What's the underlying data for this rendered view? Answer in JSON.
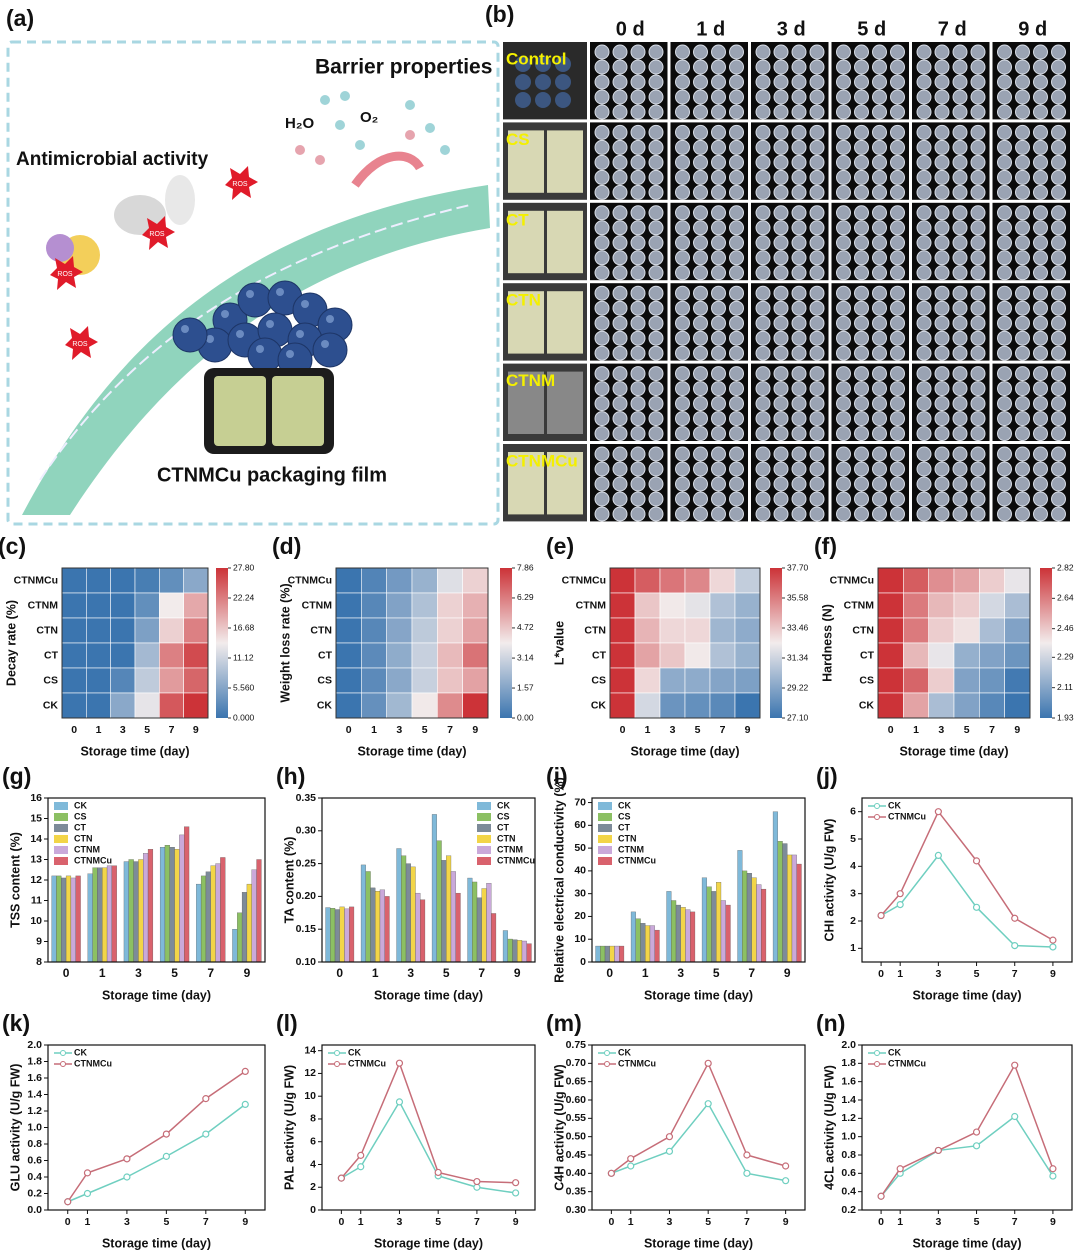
{
  "panel_a": {
    "label": "(a)",
    "title": "Barrier properties",
    "h2o": "H₂O",
    "o2": "O₂",
    "antimicrobial": "Antimicrobial activity",
    "ros": "ROS",
    "film": "CTNMCu packaging film"
  },
  "panel_b": {
    "label": "(b)",
    "days": [
      "0 d",
      "1 d",
      "3 d",
      "5 d",
      "7 d",
      "9 d"
    ],
    "rows": [
      "Control",
      "CS",
      "CT",
      "CTN",
      "CTNM",
      "CTNMCu"
    ]
  },
  "chart_data": [
    {
      "type": "heatmap",
      "panel": "(c)",
      "xlabel": "Storage time (day)",
      "ylabel": "Decay rate (%)",
      "x": [
        "0",
        "1",
        "3",
        "5",
        "7",
        "9"
      ],
      "y": [
        "CTNMCu",
        "CTNM",
        "CTN",
        "CT",
        "CS",
        "CK"
      ],
      "values": [
        [
          0,
          0,
          0,
          1,
          3,
          6
        ],
        [
          0,
          0,
          0,
          3,
          14,
          19
        ],
        [
          0,
          0,
          0,
          5,
          16,
          22
        ],
        [
          0,
          0,
          0,
          8,
          22,
          26
        ],
        [
          0,
          0,
          2,
          10,
          20,
          24
        ],
        [
          0,
          0,
          6,
          13,
          25,
          27.8
        ]
      ],
      "zlim": [
        0,
        27.8
      ],
      "colorbar_ticks": [
        {
          "value": 0,
          "label": "0.000"
        },
        {
          "value": 5.56,
          "label": "5.560"
        },
        11.12,
        16.68,
        22.24,
        {
          "value": 27.8,
          "label": "27.80"
        }
      ]
    },
    {
      "type": "heatmap",
      "panel": "(d)",
      "xlabel": "Storage time (day)",
      "ylabel": "Weight loss rate (%)",
      "x": [
        "0",
        "1",
        "3",
        "5",
        "7",
        "9"
      ],
      "y": [
        "CTNMCu",
        "CTNM",
        "CTN",
        "CT",
        "CS",
        "CK"
      ],
      "values": [
        [
          0,
          0.5,
          1.2,
          2,
          3.5,
          4.5
        ],
        [
          0,
          0.6,
          1.5,
          2.5,
          4.5,
          5.2
        ],
        [
          0,
          0.6,
          1.6,
          2.8,
          4.5,
          5.5
        ],
        [
          0,
          0.7,
          1.8,
          3,
          5,
          6.5
        ],
        [
          0,
          0.7,
          1.7,
          3,
          4.8,
          5.5
        ],
        [
          0,
          0.9,
          2.2,
          4,
          6,
          7.86
        ]
      ],
      "zlim": [
        0,
        7.86
      ],
      "colorbar_ticks": [
        {
          "value": 0,
          "label": "0.00"
        },
        1.57,
        3.14,
        4.72,
        6.29,
        7.86
      ]
    },
    {
      "type": "heatmap",
      "panel": "(e)",
      "xlabel": "Storage time (day)",
      "ylabel": "L*value",
      "x": [
        "0",
        "1",
        "3",
        "5",
        "7",
        "9"
      ],
      "y": [
        "CTNMCu",
        "CTNM",
        "CTN",
        "CT",
        "CS",
        "CK"
      ],
      "values": [
        [
          37.7,
          36.5,
          35.8,
          35.3,
          33,
          31
        ],
        [
          37.7,
          33.5,
          32.5,
          32,
          30.5,
          29.8
        ],
        [
          37.7,
          34,
          33,
          33,
          30,
          29.5
        ],
        [
          37.7,
          34.5,
          33.5,
          32.5,
          30.5,
          29.8
        ],
        [
          37.7,
          33,
          29.5,
          29.5,
          29.2,
          29
        ],
        [
          37.7,
          31.5,
          28.5,
          28.3,
          28,
          27.1
        ]
      ],
      "zlim": [
        27.1,
        37.7
      ],
      "colorbar_ticks": [
        {
          "value": 27.1,
          "label": "27.10"
        },
        29.22,
        31.34,
        33.46,
        35.58,
        {
          "value": 37.7,
          "label": "37.70"
        }
      ]
    },
    {
      "type": "heatmap",
      "panel": "(f)",
      "xlabel": "Storage time (day)",
      "ylabel": "Hardness (N)",
      "x": [
        "0",
        "1",
        "3",
        "5",
        "7",
        "9"
      ],
      "y": [
        "CTNMCu",
        "CTNM",
        "CTN",
        "CT",
        "CS",
        "CK"
      ],
      "values": [
        [
          2.82,
          2.72,
          2.6,
          2.55,
          2.45,
          2.35
        ],
        [
          2.82,
          2.65,
          2.5,
          2.45,
          2.3,
          2.2
        ],
        [
          2.82,
          2.65,
          2.45,
          2.4,
          2.2,
          2.1
        ],
        [
          2.82,
          2.5,
          2.35,
          2.15,
          2.1,
          2.05
        ],
        [
          2.82,
          2.7,
          2.45,
          2.1,
          2.05,
          1.95
        ],
        [
          2.82,
          2.55,
          2.2,
          2.1,
          2.0,
          1.93
        ]
      ],
      "zlim": [
        1.93,
        2.82
      ],
      "colorbar_ticks": [
        1.93,
        2.11,
        2.29,
        2.46,
        2.64,
        2.82
      ]
    },
    {
      "type": "bar",
      "panel": "(g)",
      "xlabel": "Storage time (day)",
      "ylabel": "TSS content (%)",
      "categories": [
        "0",
        "1",
        "3",
        "5",
        "7",
        "9"
      ],
      "ylim": [
        8,
        16
      ],
      "yticks": [
        8,
        9,
        10,
        11,
        12,
        13,
        14,
        15,
        16
      ],
      "legend": "upper left",
      "series": [
        {
          "name": "CK",
          "color": "#7fb9d9",
          "values": [
            12.2,
            12.3,
            12.9,
            13.6,
            11.8,
            9.6
          ]
        },
        {
          "name": "CS",
          "color": "#8cc063",
          "values": [
            12.2,
            12.6,
            13.0,
            13.7,
            12.2,
            10.4
          ]
        },
        {
          "name": "CT",
          "color": "#7d8b99",
          "values": [
            12.1,
            12.6,
            12.9,
            13.6,
            12.4,
            11.4
          ]
        },
        {
          "name": "CTN",
          "color": "#f2d548",
          "values": [
            12.2,
            12.6,
            13.0,
            13.5,
            12.7,
            11.8
          ]
        },
        {
          "name": "CTNM",
          "color": "#caa9da",
          "values": [
            12.1,
            12.7,
            13.3,
            14.2,
            12.8,
            12.5
          ]
        },
        {
          "name": "CTNMCu",
          "color": "#d9626d",
          "values": [
            12.2,
            12.7,
            13.5,
            14.6,
            13.1,
            13.0
          ]
        }
      ]
    },
    {
      "type": "bar",
      "panel": "(h)",
      "xlabel": "Storage time (day)",
      "ylabel": "TA content (%)",
      "categories": [
        "0",
        "1",
        "3",
        "5",
        "7",
        "9"
      ],
      "ylim": [
        0.1,
        0.35
      ],
      "yticks": [
        {
          "value": 0.1,
          "label": "0.10"
        },
        0.15,
        {
          "value": 0.2,
          "label": "0.20"
        },
        0.25,
        {
          "value": 0.3,
          "label": "0.30"
        },
        0.35
      ],
      "legend": "upper right",
      "series": [
        {
          "name": "CK",
          "color": "#7fb9d9",
          "values": [
            0.183,
            0.248,
            0.273,
            0.325,
            0.228,
            0.148
          ]
        },
        {
          "name": "CS",
          "color": "#8cc063",
          "values": [
            0.182,
            0.238,
            0.262,
            0.285,
            0.222,
            0.135
          ]
        },
        {
          "name": "CT",
          "color": "#7d8b99",
          "values": [
            0.18,
            0.213,
            0.25,
            0.255,
            0.198,
            0.134
          ]
        },
        {
          "name": "CTN",
          "color": "#f2d548",
          "values": [
            0.184,
            0.208,
            0.245,
            0.262,
            0.212,
            0.133
          ]
        },
        {
          "name": "CTNM",
          "color": "#caa9da",
          "values": [
            0.181,
            0.21,
            0.205,
            0.238,
            0.22,
            0.132
          ]
        },
        {
          "name": "CTNMCu",
          "color": "#d9626d",
          "values": [
            0.184,
            0.2,
            0.195,
            0.205,
            0.174,
            0.128
          ]
        }
      ]
    },
    {
      "type": "bar",
      "panel": "(i)",
      "xlabel": "Storage time (day)",
      "ylabel": "Relative electrical conductivity (%)",
      "categories": [
        "0",
        "1",
        "3",
        "5",
        "7",
        "9"
      ],
      "ylim": [
        0,
        72
      ],
      "yticks": [
        0,
        10,
        20,
        30,
        40,
        50,
        60,
        70
      ],
      "legend": "upper left",
      "series": [
        {
          "name": "CK",
          "color": "#7fb9d9",
          "values": [
            7,
            22,
            31,
            37,
            49,
            66
          ]
        },
        {
          "name": "CS",
          "color": "#8cc063",
          "values": [
            7,
            19,
            27,
            33,
            40,
            53
          ]
        },
        {
          "name": "CT",
          "color": "#7d8b99",
          "values": [
            7,
            17,
            25,
            31,
            39,
            52
          ]
        },
        {
          "name": "CTN",
          "color": "#f2d548",
          "values": [
            7,
            16,
            24,
            35,
            37,
            47
          ]
        },
        {
          "name": "CTNM",
          "color": "#caa9da",
          "values": [
            7,
            16,
            23,
            27,
            34,
            47
          ]
        },
        {
          "name": "CTNMCu",
          "color": "#d9626d",
          "values": [
            7,
            14,
            22,
            25,
            32,
            43
          ]
        }
      ]
    },
    {
      "type": "line",
      "panel": "(j)",
      "xlabel": "Storage time (day)",
      "ylabel": "CHI activity (U/g FW)",
      "x": [
        0,
        1,
        3,
        5,
        7,
        9
      ],
      "xlim": [
        -1,
        10
      ],
      "xticks": [
        0,
        1,
        3,
        5,
        7,
        9
      ],
      "ylim": [
        0.5,
        6.5
      ],
      "yticks": [
        1,
        2,
        3,
        4,
        5,
        6
      ],
      "legend": "upper left",
      "series": [
        {
          "name": "CK",
          "color": "#6fcfc0",
          "values": [
            2.2,
            2.6,
            4.4,
            2.5,
            1.1,
            1.05
          ]
        },
        {
          "name": "CTNMCu",
          "color": "#c66d78",
          "values": [
            2.2,
            3.0,
            6.0,
            4.2,
            2.1,
            1.3
          ]
        }
      ]
    },
    {
      "type": "line",
      "panel": "(k)",
      "xlabel": "Storage time (day)",
      "ylabel": "GLU activity (U/g FW)",
      "x": [
        0,
        1,
        3,
        5,
        7,
        9
      ],
      "xlim": [
        -1,
        10
      ],
      "xticks": [
        0,
        1,
        3,
        5,
        7,
        9
      ],
      "ylim": [
        0,
        2
      ],
      "yticks": [
        {
          "value": 0,
          "label": "0.0"
        },
        0.2,
        0.4,
        0.6,
        0.8,
        {
          "value": 1,
          "label": "1.0"
        },
        1.2,
        1.4,
        1.6,
        1.8,
        {
          "value": 2,
          "label": "2.0"
        }
      ],
      "legend": "upper left",
      "series": [
        {
          "name": "CK",
          "color": "#6fcfc0",
          "values": [
            0.1,
            0.2,
            0.4,
            0.65,
            0.92,
            1.28
          ]
        },
        {
          "name": "CTNMCu",
          "color": "#c66d78",
          "values": [
            0.1,
            0.45,
            0.62,
            0.92,
            1.35,
            1.68
          ]
        }
      ]
    },
    {
      "type": "line",
      "panel": "(l)",
      "xlabel": "Storage time (day)",
      "ylabel": "PAL activity (U/g FW)",
      "x": [
        0,
        1,
        3,
        5,
        7,
        9
      ],
      "xlim": [
        -1,
        10
      ],
      "xticks": [
        0,
        1,
        3,
        5,
        7,
        9
      ],
      "ylim": [
        0,
        14.5
      ],
      "yticks": [
        0,
        2,
        4,
        6,
        8,
        10,
        12,
        14
      ],
      "legend": "upper left",
      "series": [
        {
          "name": "CK",
          "color": "#6fcfc0",
          "values": [
            2.8,
            3.8,
            9.5,
            3.0,
            2.0,
            1.5
          ]
        },
        {
          "name": "CTNMCu",
          "color": "#c66d78",
          "values": [
            2.8,
            4.8,
            12.9,
            3.3,
            2.5,
            2.4
          ]
        }
      ]
    },
    {
      "type": "line",
      "panel": "(m)",
      "xlabel": "Storage time (day)",
      "ylabel": "C4H activity (U/g FW)",
      "x": [
        0,
        1,
        3,
        5,
        7,
        9
      ],
      "xlim": [
        -1,
        10
      ],
      "xticks": [
        0,
        1,
        3,
        5,
        7,
        9
      ],
      "ylim": [
        0.3,
        0.75
      ],
      "yticks": [
        {
          "value": 0.3,
          "label": "0.30"
        },
        0.35,
        {
          "value": 0.4,
          "label": "0.40"
        },
        0.45,
        {
          "value": 0.5,
          "label": "0.50"
        },
        0.55,
        {
          "value": 0.6,
          "label": "0.60"
        },
        0.65,
        {
          "value": 0.7,
          "label": "0.70"
        },
        0.75
      ],
      "legend": "upper left",
      "series": [
        {
          "name": "CK",
          "color": "#6fcfc0",
          "values": [
            0.4,
            0.42,
            0.46,
            0.59,
            0.4,
            0.38
          ]
        },
        {
          "name": "CTNMCu",
          "color": "#c66d78",
          "values": [
            0.4,
            0.44,
            0.5,
            0.7,
            0.45,
            0.42
          ]
        }
      ]
    },
    {
      "type": "line",
      "panel": "(n)",
      "xlabel": "Storage time (day)",
      "ylabel": "4CL activity (U/g FW)",
      "x": [
        0,
        1,
        3,
        5,
        7,
        9
      ],
      "xlim": [
        -1,
        10
      ],
      "xticks": [
        0,
        1,
        3,
        5,
        7,
        9
      ],
      "ylim": [
        0.2,
        2
      ],
      "yticks": [
        0.2,
        0.4,
        0.6,
        0.8,
        {
          "value": 1,
          "label": "1.0"
        },
        1.2,
        1.4,
        1.6,
        1.8,
        {
          "value": 2,
          "label": "2.0"
        }
      ],
      "legend": "upper left",
      "series": [
        {
          "name": "CK",
          "color": "#6fcfc0",
          "values": [
            0.35,
            0.6,
            0.85,
            0.9,
            1.22,
            0.57
          ]
        },
        {
          "name": "CTNMCu",
          "color": "#c66d78",
          "values": [
            0.35,
            0.65,
            0.85,
            1.05,
            1.78,
            0.65
          ]
        }
      ]
    }
  ]
}
